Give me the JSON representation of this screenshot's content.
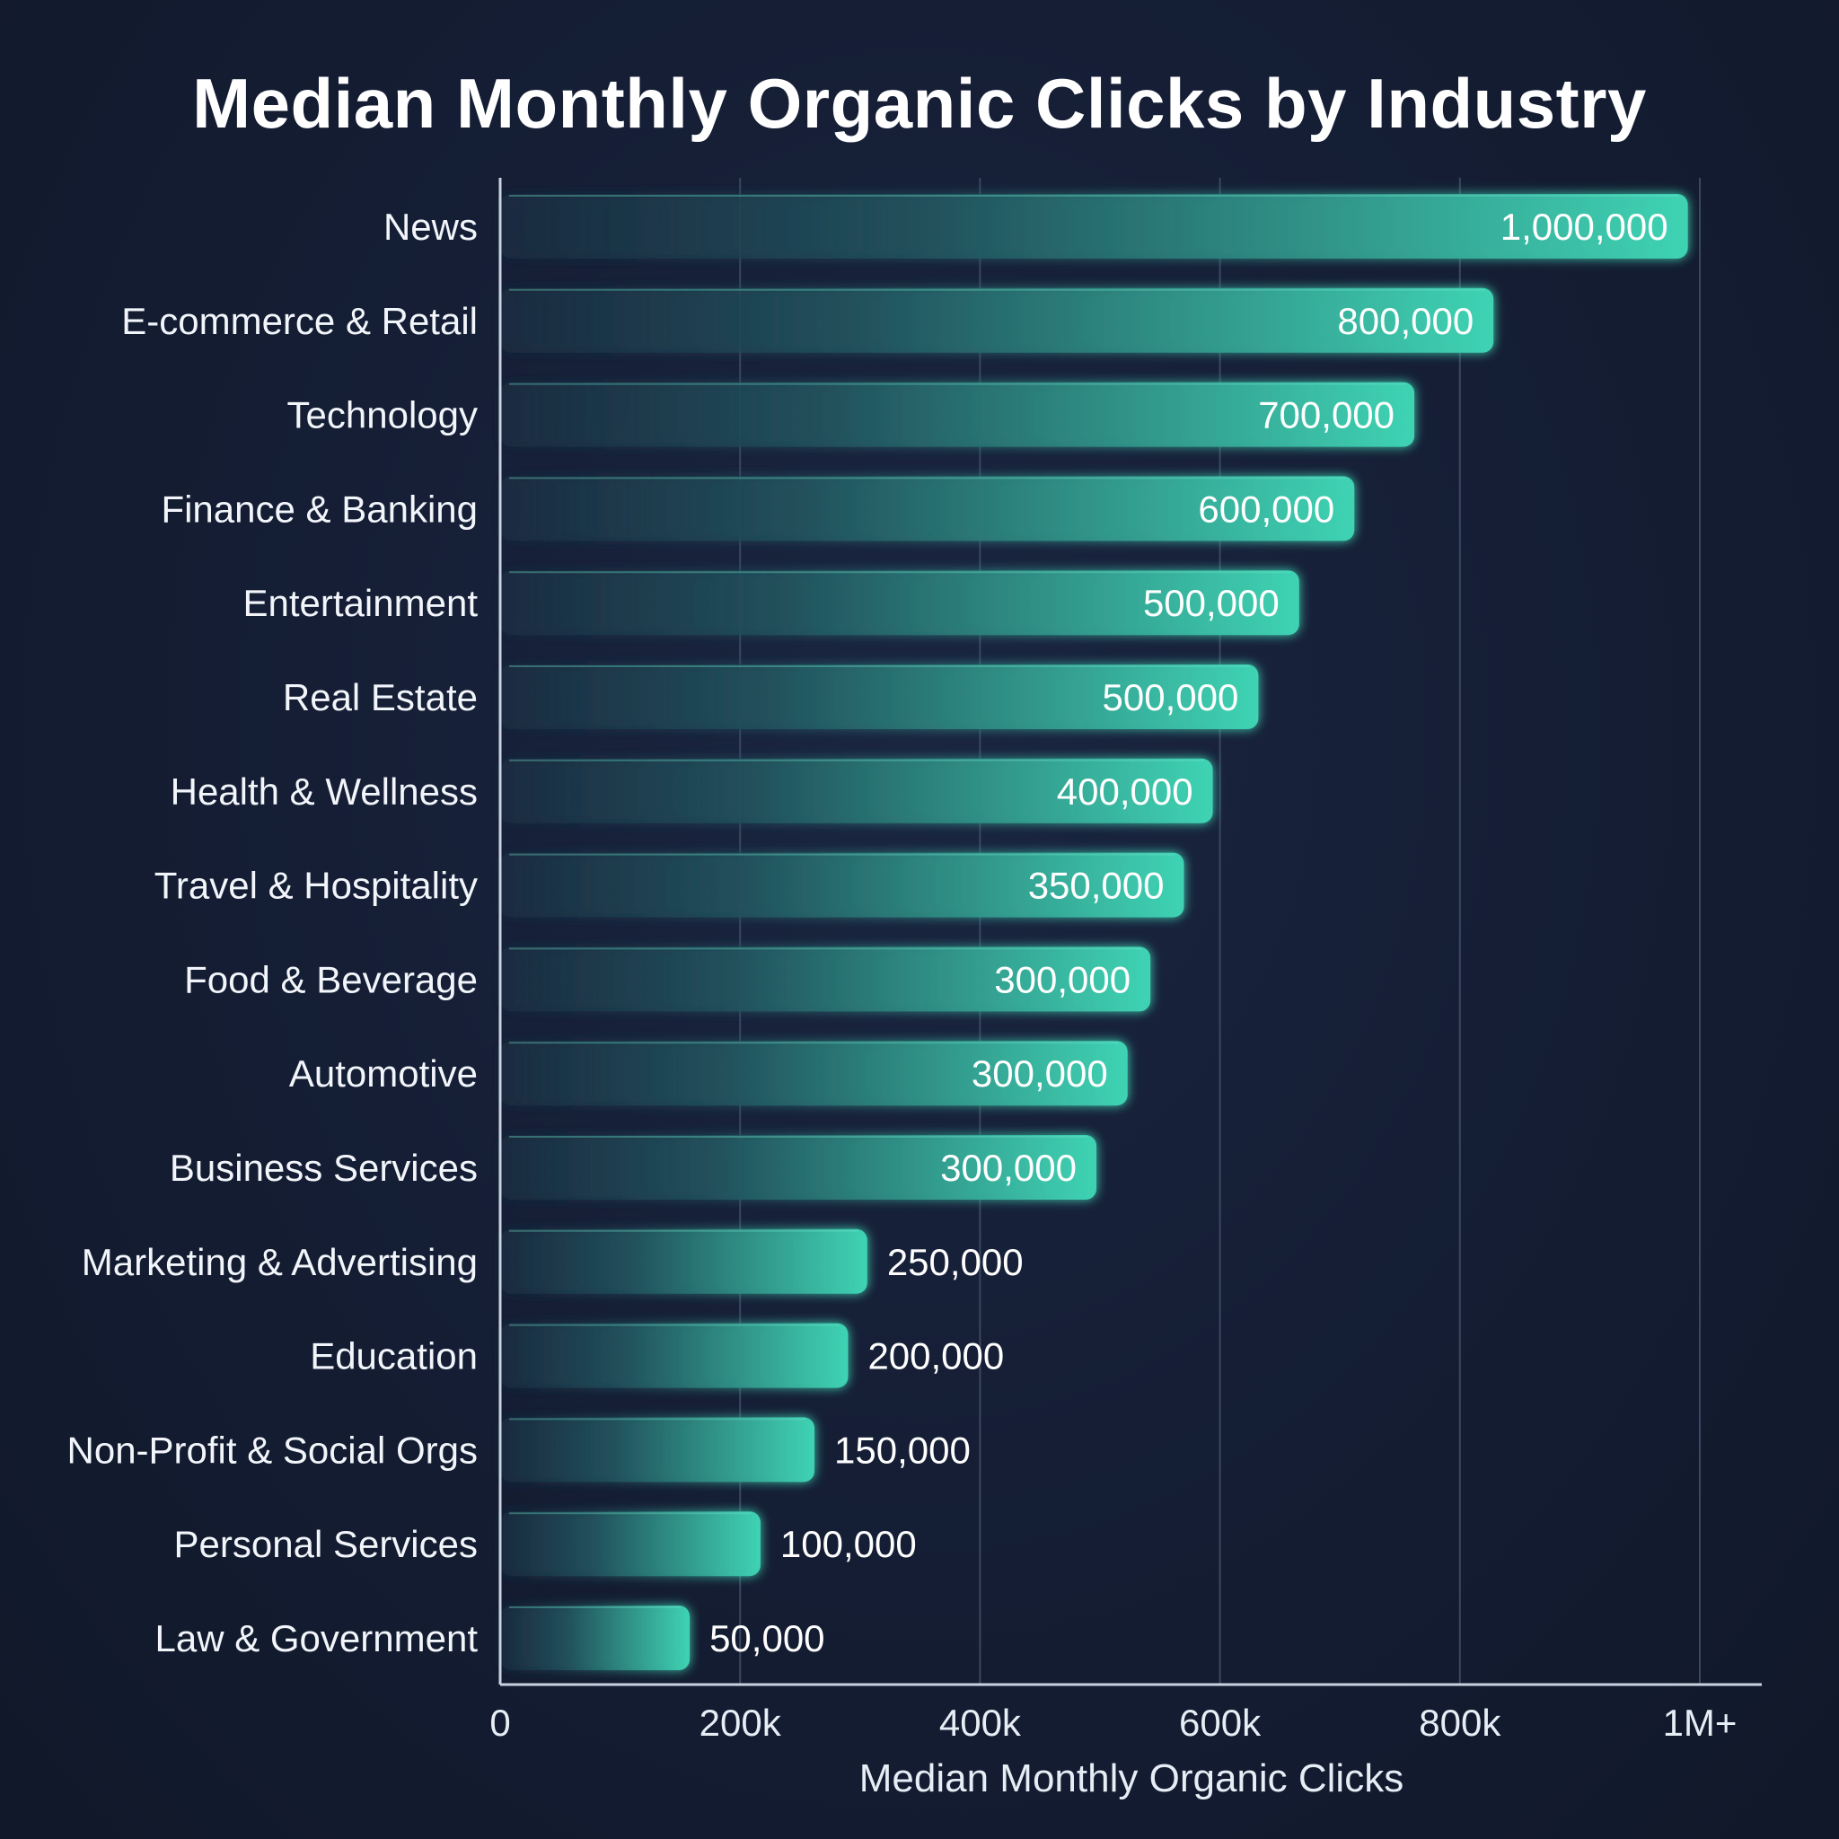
{
  "chart_data": {
    "type": "bar",
    "orientation": "horizontal",
    "title": "Median Monthly Organic Clicks by Industry",
    "xlabel": "Median Monthly Organic Clicks",
    "ylabel": "",
    "xlim": [
      0,
      1000000
    ],
    "x_ticks": [
      {
        "value": 0,
        "label": "0"
      },
      {
        "value": 200000,
        "label": "200k"
      },
      {
        "value": 400000,
        "label": "400k"
      },
      {
        "value": 600000,
        "label": "600k"
      },
      {
        "value": 800000,
        "label": "800k"
      },
      {
        "value": 1000000,
        "label": "1M+"
      }
    ],
    "grid": true,
    "categories": [
      "News",
      "E-commerce & Retail",
      "Technology",
      "Finance & Banking",
      "Entertainment",
      "Real Estate",
      "Health & Wellness",
      "Travel & Hospitality",
      "Food & Beverage",
      "Automotive",
      "Business Services",
      "Marketing & Advertising",
      "Education",
      "Non-Profit & Social Orgs",
      "Personal Services",
      "Law & Government"
    ],
    "values": [
      1000000,
      800000,
      700000,
      600000,
      500000,
      500000,
      400000,
      350000,
      300000,
      300000,
      300000,
      250000,
      200000,
      150000,
      100000,
      50000
    ],
    "bar_lengths_as_drawn": [
      990000,
      828000,
      762000,
      712000,
      666000,
      632000,
      594000,
      570000,
      542000,
      523000,
      497000,
      306000,
      290000,
      262000,
      217000,
      158000
    ],
    "data_labels": [
      "1,000,000",
      "800,000",
      "700,000",
      "600,000",
      "500,000",
      "500,000",
      "400,000",
      "350,000",
      "300,000",
      "300,000",
      "300,000",
      "250,000",
      "200,000",
      "150,000",
      "100,000",
      "50,000"
    ],
    "colors": {
      "background": "#131c30",
      "bar_start": "#1b3a4b",
      "bar_end": "#3fd6b4",
      "text": "#ffffff",
      "grid": "#3b4660"
    }
  }
}
